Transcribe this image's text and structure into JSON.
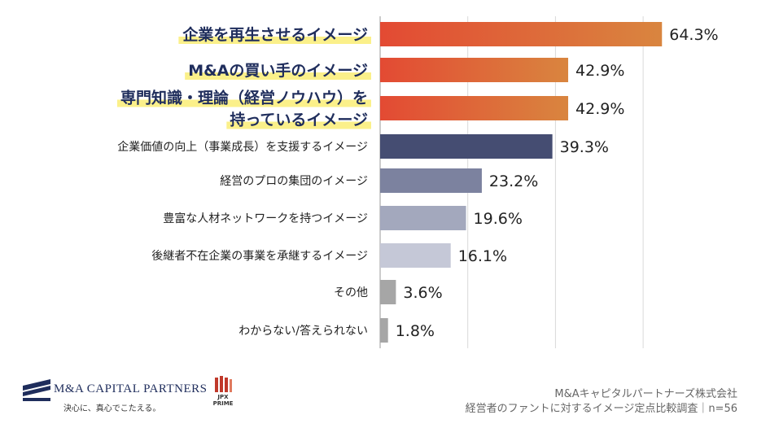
{
  "chart_data": {
    "type": "bar",
    "orientation": "horizontal",
    "categories": [
      [
        "企業を再生させるイメージ"
      ],
      [
        "M&Aの買い手のイメージ"
      ],
      [
        "専門知識・理論（経営ノウハウ）を",
        "持っているイメージ"
      ],
      [
        "企業価値の向上（事業成長）を支援するイメージ"
      ],
      [
        "経営のプロの集団のイメージ"
      ],
      [
        "豊富な人材ネットワークを持つイメージ"
      ],
      [
        "後継者不在企業の事業を承継するイメージ"
      ],
      [
        "その他"
      ],
      [
        "わからない/答えられない"
      ]
    ],
    "values": [
      64.3,
      42.9,
      42.9,
      39.3,
      23.2,
      19.6,
      16.1,
      3.6,
      1.8
    ],
    "value_labels": [
      "64.3%",
      "42.9%",
      "42.9%",
      "39.3%",
      "23.2%",
      "19.6%",
      "16.1%",
      "3.6%",
      "1.8%"
    ],
    "highlighted": [
      true,
      true,
      true,
      false,
      false,
      false,
      false,
      false,
      false
    ],
    "colors": [
      "gradient",
      "gradient",
      "gradient",
      "#454d72",
      "#7c829f",
      "#a3a8bd",
      "#c5c8d7",
      "#a6a6a6",
      "#a6a6a6"
    ],
    "highlight_gradient": [
      "#e34a33",
      "#d9853f"
    ],
    "highlight_marker_color": "#fbf08a",
    "xlim": [
      0,
      70
    ],
    "grid": true
  },
  "footer": {
    "company_logo": "M&A CAPITAL PARTNERS",
    "company_tagline": "決心に、真心でこたえる。",
    "exchange_badge_line1": "JPX",
    "exchange_badge_line2": "PRIME",
    "source_line1": "M&Aキャピタルパートナーズ株式会社",
    "source_line2": "経営者のファントに対するイメージ定点比較調査｜n=56"
  }
}
